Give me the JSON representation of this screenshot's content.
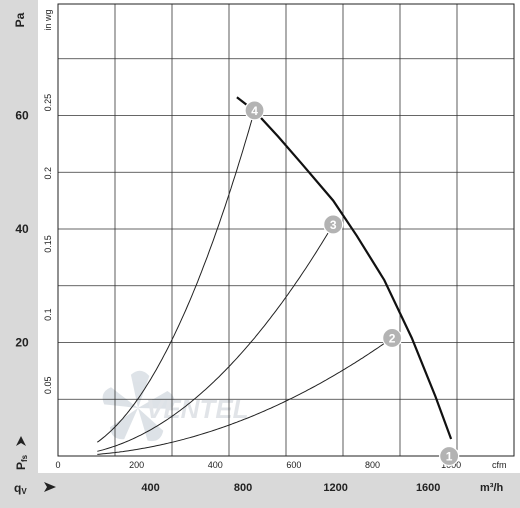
{
  "chart_data": {
    "type": "line",
    "title": "",
    "left_axis": {
      "unit_label": "Pa",
      "ticks": [
        20,
        40,
        60
      ],
      "range": [
        0,
        60
      ]
    },
    "inner_axis": {
      "unit_label": "in wg",
      "ticks": [
        "0.05",
        "0.1",
        "0.15",
        "0.2",
        "0.25"
      ]
    },
    "pressure_symbol": "P",
    "pressure_subscript": "fs",
    "flow_symbol": "q",
    "flow_subscript": "V",
    "top_x_axis": {
      "unit_label": "cfm",
      "ticks": [
        "0",
        "200",
        "400",
        "600",
        "800",
        "1000"
      ],
      "range_cfm": [
        0,
        1160
      ]
    },
    "bottom_x_axis": {
      "unit_label": "m³/h",
      "ticks": [
        "400",
        "800",
        "1200",
        "1600"
      ]
    },
    "grid": true,
    "fan_curve": {
      "x_cfm": [
        455,
        500,
        560,
        620,
        700,
        760,
        830,
        900,
        960,
        1000
      ],
      "y_pa": [
        63.2,
        60.8,
        56.3,
        51.5,
        45.0,
        38.8,
        31.0,
        20.8,
        10.5,
        3.0
      ]
    },
    "operating_points": [
      {
        "label": "1",
        "x_cfm": 995,
        "y_pa": 0.0
      },
      {
        "label": "2",
        "x_cfm": 850,
        "y_pa": 20.8
      },
      {
        "label": "3",
        "x_cfm": 700,
        "y_pa": 40.8
      },
      {
        "label": "4",
        "x_cfm": 500,
        "y_pa": 60.9
      }
    ],
    "watermark": "VENTEL"
  }
}
